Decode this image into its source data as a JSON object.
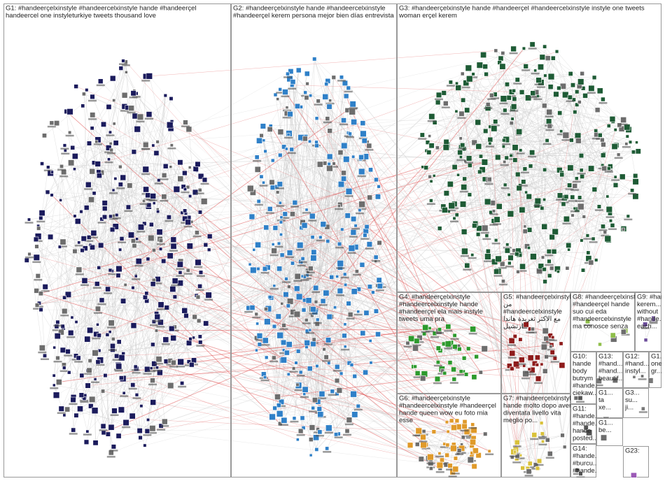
{
  "groups": [
    {
      "label": [
        "G1: #handeerçelxinstyle #handeercelxinstyle hande #handeerçel",
        "handeercel one instyleturkiye tweets thousand love"
      ]
    },
    {
      "label": [
        "G2: #handeerçelxinstyle hande #handeercelxinstyle",
        "#handeerçel kerem persona mejor bien días entrevista"
      ]
    },
    {
      "label": [
        "G3: #handeerçelxinstyle hande #handeerçel #handeercelxinstyle instyle one tweets",
        "woman erçel kerem"
      ]
    },
    {
      "label": [
        "G4: #handeerçelxinstyle",
        "#handeercelxinstyle hande",
        "#handeerçel ela mais instyle",
        "tweets uma pra"
      ]
    },
    {
      "label": [
        "G5: #handeerçelxinstyle",
        "من",
        "#handeercelxinstyle",
        "مع الاكثر تغريدة هاندا",
        "ارتشيل"
      ]
    },
    {
      "label": [
        "G6: #handeerçelxinstyle",
        "#handeercelxinstyle #handeerçel",
        "hande queen wow eu foto mia",
        "esse"
      ]
    },
    {
      "label": [
        "G7: #handeerçelxinstyle",
        "hande molto dopo aver",
        "diventata livello vita",
        "meglio po..."
      ]
    },
    {
      "label": [
        "G8: #handeerçelxinstyle",
        "#handeerçel hande",
        "suo cui eda",
        "#handeercelxinstyle",
        "ma conosce senza"
      ]
    },
    {
      "label": [
        "G9: #hande...",
        "kerem...",
        "without",
        "#hande...",
        "each..."
      ]
    },
    {
      "label": [
        "G10:",
        "hande",
        "body",
        "butrym",
        "#hande...",
        "ciekaw..."
      ]
    },
    {
      "label": [
        "G13:",
        "#hand...",
        "#hand...",
        "beautif..."
      ]
    },
    {
      "label": [
        "G12:",
        "#hand...",
        "instyl..."
      ]
    },
    {
      "label": [
        "G1...",
        "one",
        "gr..."
      ]
    },
    {
      "label": [
        "G11:",
        "#hande...",
        "#hande...",
        "hande",
        "posted..."
      ]
    },
    {
      "label": [
        "G14:",
        "#hande...",
        "#burcu...",
        "#hande..."
      ]
    },
    {
      "label": [
        "G1...",
        "ta",
        "xe..."
      ]
    },
    {
      "label": [
        "G3...",
        "su...",
        "ji..."
      ]
    },
    {
      "label": [
        "G1...",
        "be..."
      ]
    },
    {
      "label": [
        "G23:"
      ]
    }
  ]
}
